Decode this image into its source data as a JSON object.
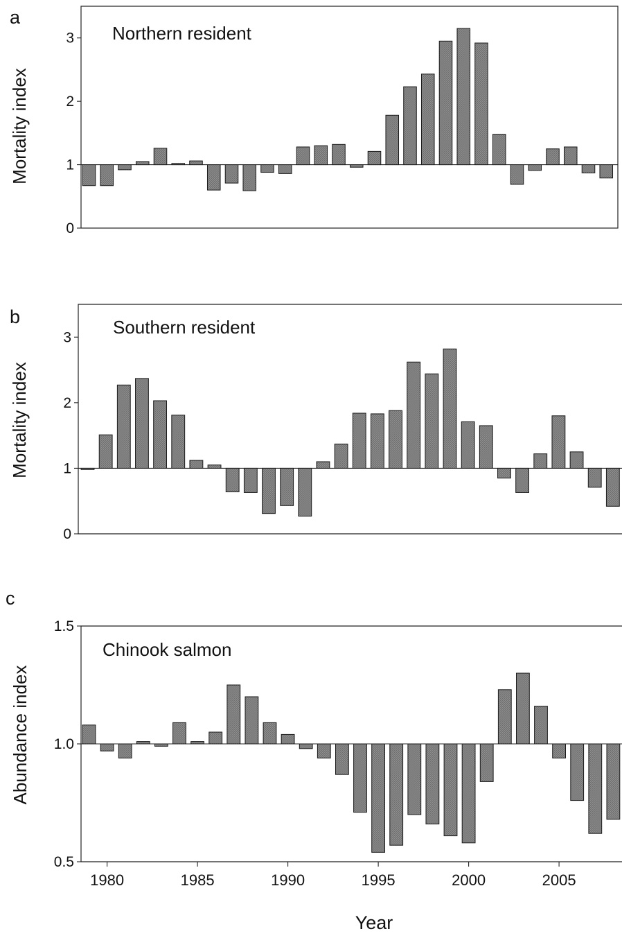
{
  "chart_data": [
    {
      "type": "bar",
      "panel": "a",
      "label": "Northern resident",
      "ylabel": "Mortality index",
      "ylim": [
        0,
        3.5
      ],
      "baseline": 1,
      "yticks": [
        "0",
        "1",
        "2",
        "3"
      ],
      "x": [
        1979,
        1980,
        1981,
        1982,
        1983,
        1984,
        1985,
        1986,
        1987,
        1988,
        1989,
        1990,
        1991,
        1992,
        1993,
        1994,
        1995,
        1996,
        1997,
        1998,
        1999,
        2000,
        2001,
        2002,
        2003,
        2004,
        2005,
        2006,
        2007,
        2008
      ],
      "values": [
        0.67,
        0.67,
        0.92,
        1.05,
        1.26,
        1.02,
        1.06,
        0.6,
        0.71,
        0.59,
        0.88,
        0.86,
        1.28,
        1.3,
        1.32,
        0.96,
        1.21,
        1.78,
        2.23,
        2.43,
        2.95,
        3.15,
        2.92,
        1.48,
        0.69,
        0.91,
        1.25,
        1.28,
        0.87,
        0.79
      ],
      "grid": false
    },
    {
      "type": "bar",
      "panel": "b",
      "label": "Southern resident",
      "ylabel": "Mortality index",
      "ylim": [
        0,
        3.5
      ],
      "baseline": 1,
      "yticks": [
        "0",
        "1",
        "2",
        "3"
      ],
      "x": [
        1979,
        1980,
        1981,
        1982,
        1983,
        1984,
        1985,
        1986,
        1987,
        1988,
        1989,
        1990,
        1991,
        1992,
        1993,
        1994,
        1995,
        1996,
        1997,
        1998,
        1999,
        2000,
        2001,
        2002,
        2003,
        2004,
        2005,
        2006,
        2007,
        2008
      ],
      "values": [
        0.98,
        1.51,
        2.27,
        2.37,
        2.03,
        1.81,
        1.12,
        1.05,
        0.64,
        0.63,
        0.31,
        0.43,
        0.27,
        1.1,
        1.37,
        1.84,
        1.83,
        1.88,
        2.62,
        2.44,
        2.82,
        1.71,
        1.65,
        0.85,
        0.63,
        1.22,
        1.8,
        1.25,
        0.71,
        0.42
      ],
      "grid": false
    },
    {
      "type": "bar",
      "panel": "c",
      "label": "Chinook salmon",
      "ylabel": "Abundance index",
      "xlabel": "Year",
      "ylim": [
        0.5,
        1.5
      ],
      "baseline": 1.0,
      "yticks": [
        "0.5",
        "1.0",
        "1.5"
      ],
      "xticks": [
        "1980",
        "1985",
        "1990",
        "1995",
        "2000",
        "2005"
      ],
      "x": [
        1979,
        1980,
        1981,
        1982,
        1983,
        1984,
        1985,
        1986,
        1987,
        1988,
        1989,
        1990,
        1991,
        1992,
        1993,
        1994,
        1995,
        1996,
        1997,
        1998,
        1999,
        2000,
        2001,
        2002,
        2003,
        2004,
        2005,
        2006,
        2007,
        2008
      ],
      "values": [
        1.08,
        0.97,
        0.94,
        1.01,
        0.99,
        1.09,
        1.01,
        1.05,
        1.25,
        1.2,
        1.09,
        1.04,
        0.98,
        0.94,
        0.87,
        0.71,
        0.54,
        0.57,
        0.7,
        0.66,
        0.61,
        0.58,
        0.84,
        1.23,
        1.3,
        1.16,
        0.94,
        0.76,
        0.62,
        0.68
      ],
      "grid": false
    }
  ]
}
